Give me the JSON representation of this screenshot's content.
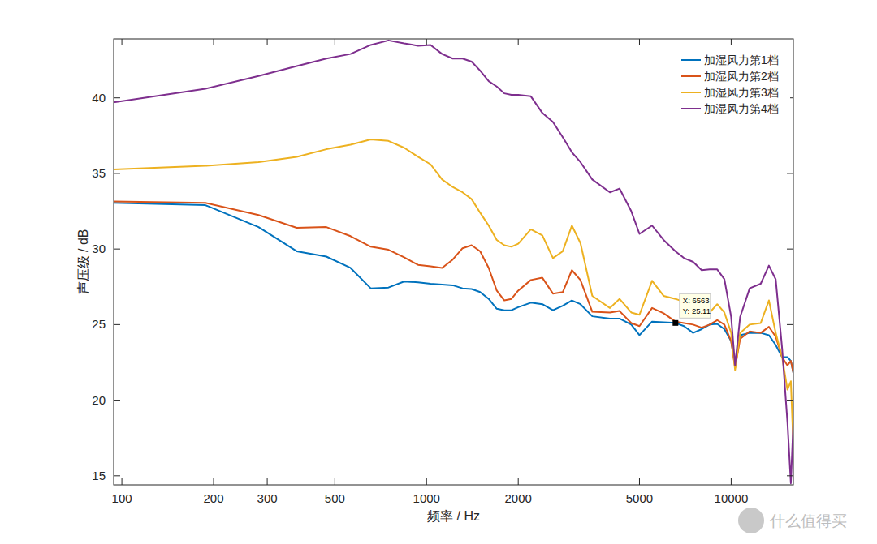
{
  "chart_data": {
    "type": "line",
    "x_label": "频率 / Hz",
    "y_label": "声压级 / dB",
    "log": "x",
    "grid": false,
    "legend": "top-right",
    "xlim": [
      94,
      16000
    ],
    "ylim": [
      14.4,
      43.9
    ],
    "xticks": [
      100,
      200,
      300,
      500,
      1000,
      2000,
      5000,
      10000
    ],
    "yticks": [
      15,
      20,
      25,
      30,
      35,
      40
    ],
    "x": [
      94,
      188,
      281,
      375,
      469,
      563,
      656,
      750,
      844,
      938,
      1031,
      1125,
      1219,
      1313,
      1406,
      1500,
      1600,
      1700,
      1800,
      1900,
      2000,
      2200,
      2400,
      2600,
      2800,
      3000,
      3200,
      3500,
      4000,
      4300,
      4700,
      5000,
      5500,
      6000,
      6563,
      7000,
      7500,
      8000,
      8500,
      9000,
      9500,
      10000,
      10300,
      10700,
      11500,
      12500,
      13300,
      14000,
      14700,
      15300,
      15700,
      16000
    ],
    "series": [
      {
        "name": "加湿风力第1档",
        "color": "#0072BD",
        "values": [
          33.05,
          32.9,
          31.45,
          29.85,
          29.5,
          28.75,
          27.4,
          27.45,
          27.85,
          27.8,
          27.7,
          27.65,
          27.6,
          27.4,
          27.35,
          27.15,
          26.7,
          26.05,
          25.95,
          25.95,
          26.15,
          26.45,
          26.35,
          25.95,
          26.25,
          26.6,
          26.35,
          25.55,
          25.4,
          25.4,
          25.0,
          24.3,
          25.2,
          25.15,
          25.11,
          24.9,
          24.45,
          24.7,
          25.0,
          25.05,
          24.7,
          23.9,
          22.4,
          24.3,
          24.45,
          24.45,
          24.3,
          23.65,
          22.85,
          22.85,
          22.6,
          21.8
        ]
      },
      {
        "name": "加湿风力第2档",
        "color": "#D95319",
        "values": [
          33.15,
          33.05,
          32.25,
          31.4,
          31.45,
          30.85,
          30.15,
          29.95,
          29.45,
          28.95,
          28.85,
          28.75,
          29.3,
          30.05,
          30.25,
          29.85,
          28.75,
          27.25,
          26.6,
          26.7,
          27.25,
          27.95,
          28.1,
          27.05,
          27.15,
          28.6,
          27.95,
          25.85,
          25.8,
          25.9,
          25.1,
          24.9,
          26.1,
          25.75,
          25.2,
          25.1,
          25.0,
          24.8,
          25.0,
          25.3,
          25.0,
          23.9,
          22.15,
          24.05,
          24.55,
          24.45,
          24.85,
          24.2,
          22.85,
          22.3,
          22.6,
          21.8
        ]
      },
      {
        "name": "加湿风力第3档",
        "color": "#EDB120",
        "values": [
          35.27,
          35.5,
          35.75,
          36.1,
          36.6,
          36.9,
          37.25,
          37.15,
          36.7,
          36.1,
          35.6,
          34.6,
          34.1,
          33.75,
          33.3,
          32.4,
          31.55,
          30.6,
          30.25,
          30.15,
          30.35,
          31.3,
          30.9,
          29.4,
          29.85,
          31.55,
          30.4,
          26.9,
          26.1,
          26.7,
          25.8,
          25.65,
          27.9,
          26.9,
          26.7,
          26.5,
          25.95,
          25.5,
          25.8,
          26.35,
          25.8,
          24.45,
          22.0,
          24.45,
          25.0,
          25.1,
          26.6,
          24.45,
          22.85,
          20.7,
          21.25,
          16.9
        ]
      },
      {
        "name": "加湿风力第4档",
        "color": "#7E2F8E",
        "values": [
          39.7,
          40.6,
          41.45,
          42.1,
          42.6,
          42.9,
          43.5,
          43.8,
          43.6,
          43.45,
          43.5,
          42.9,
          42.6,
          42.6,
          42.4,
          41.8,
          41.1,
          40.75,
          40.3,
          40.2,
          40.2,
          40.1,
          39.0,
          38.4,
          37.4,
          36.4,
          35.75,
          34.6,
          33.75,
          34.0,
          32.5,
          31.0,
          31.55,
          30.6,
          29.85,
          29.4,
          29.15,
          28.6,
          28.65,
          28.65,
          28.0,
          25.5,
          22.3,
          25.5,
          27.4,
          27.7,
          28.9,
          28.0,
          23.4,
          18.55,
          14.5,
          18.55
        ]
      }
    ],
    "annotations": [
      {
        "x": 6563,
        "y": 25.11,
        "label_x": "X: 6563",
        "label_y": "Y: 25.11"
      }
    ],
    "watermark": "什么值得买"
  }
}
